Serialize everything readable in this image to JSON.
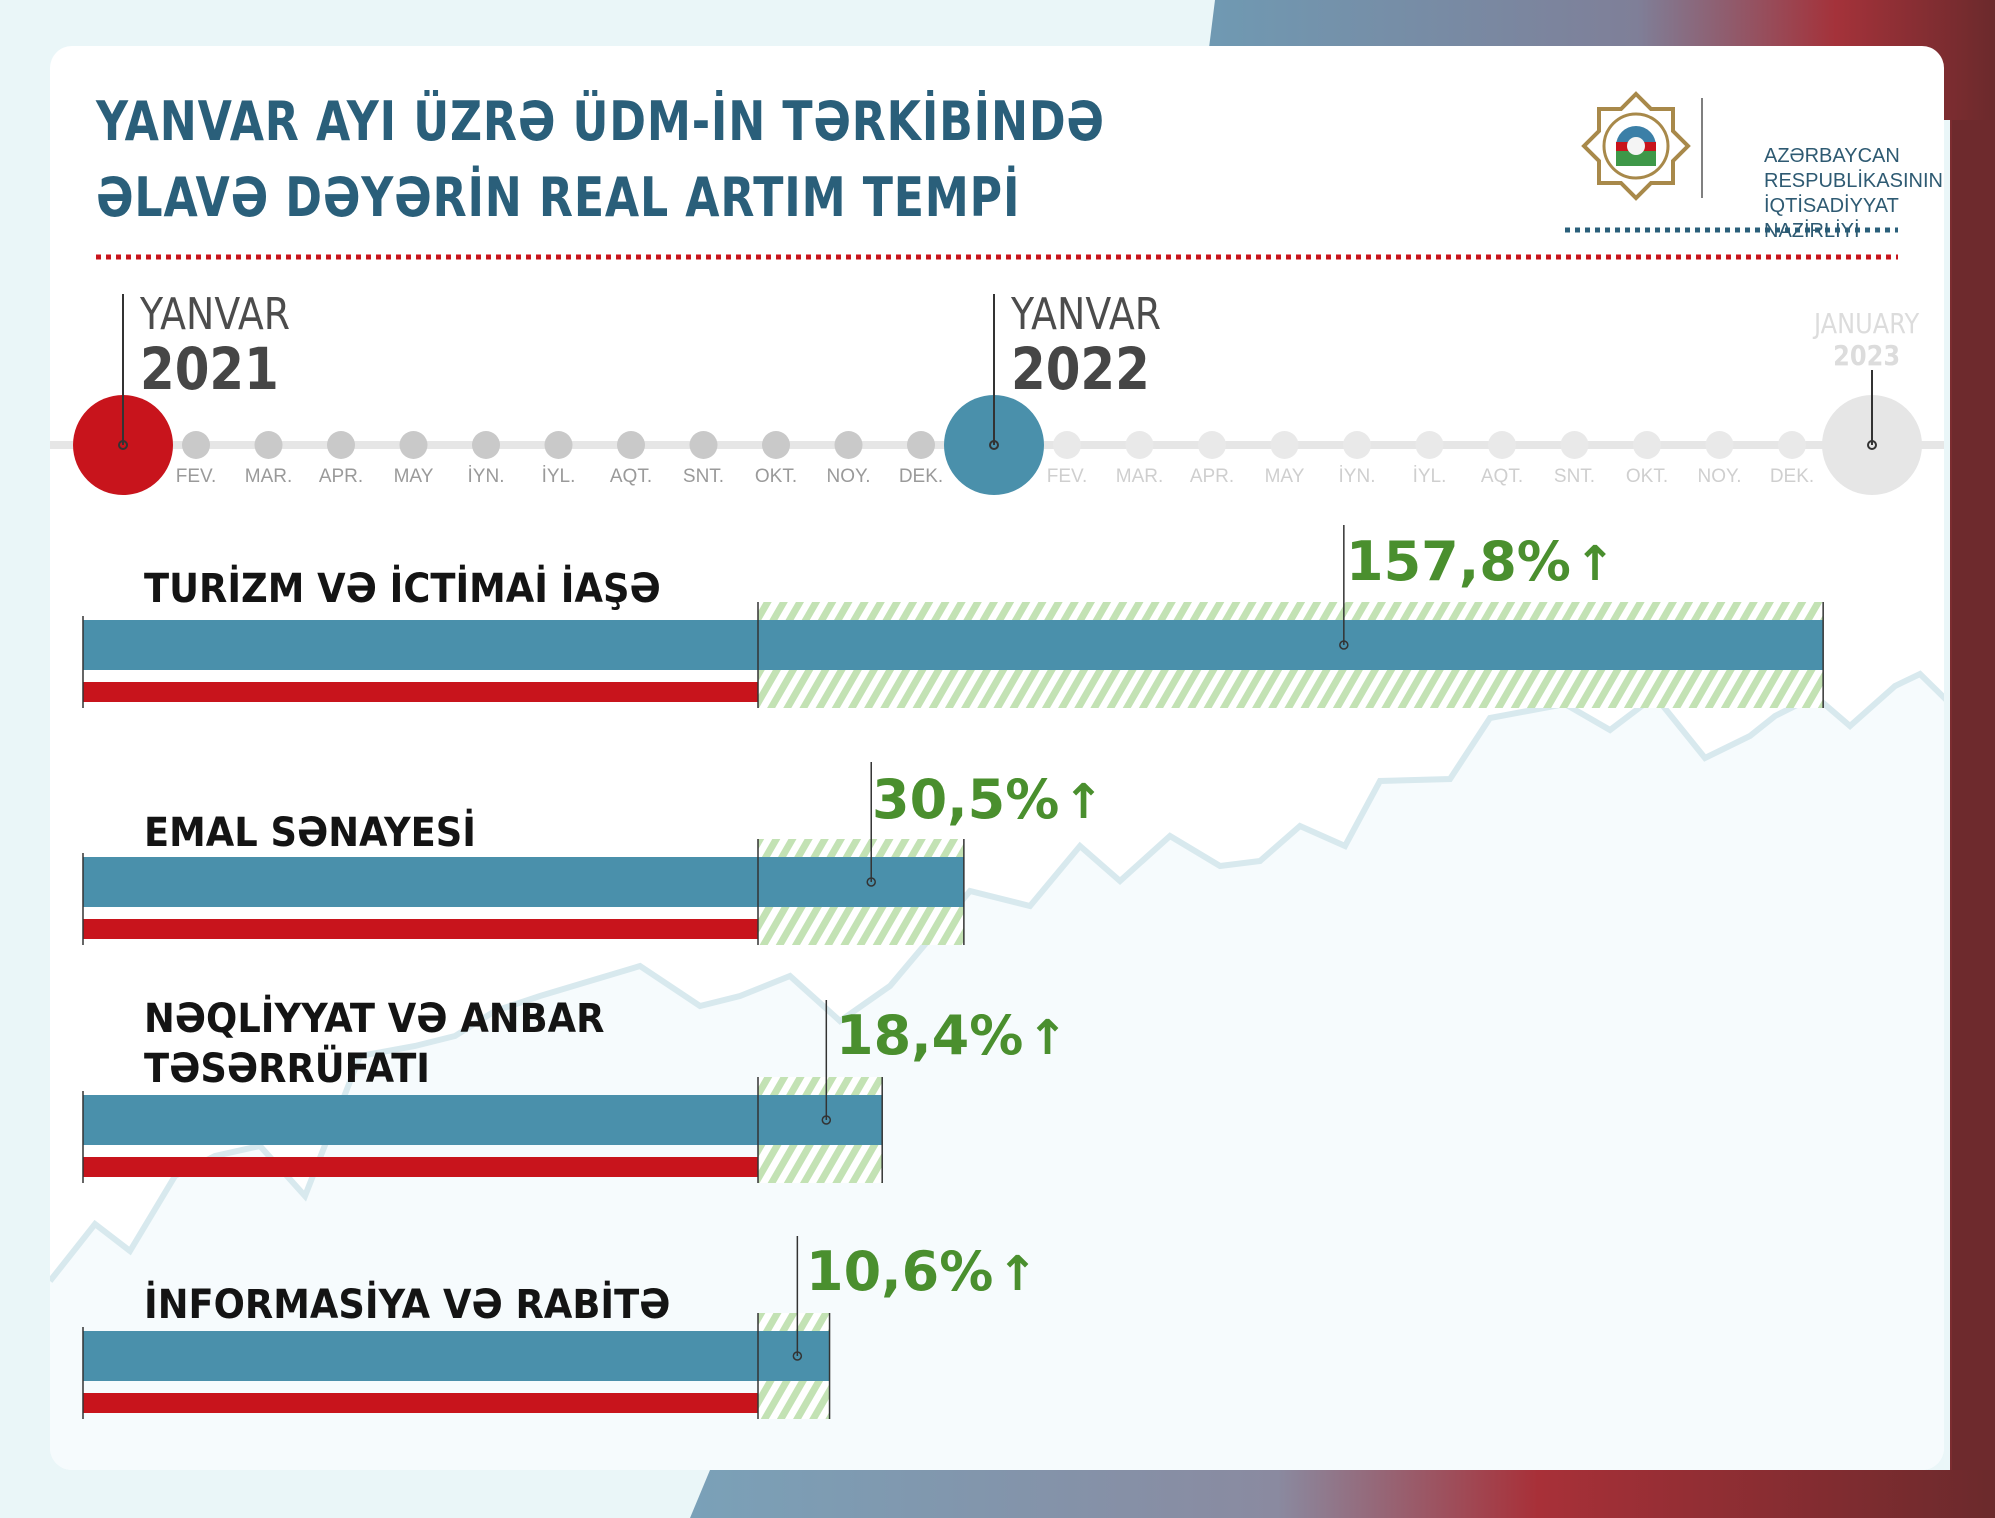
{
  "title_line1": "YANVAR AYI ÜZRƏ ÜDM-İN TƏRKİBİNDƏ",
  "title_line2": "ƏLAVƏ DƏYƏRİN REAL ARTIM TEMPİ",
  "ministry": [
    "AZƏRBAYCAN",
    "RESPUBLİKASININ",
    "İQTİSADİYYAT",
    "NAZİRLİYİ"
  ],
  "timeline": {
    "start": {
      "month": "YANVAR",
      "year": "2021"
    },
    "mid": {
      "month": "YANVAR",
      "year": "2022"
    },
    "end": {
      "month": "JANUARY",
      "year": "2023"
    },
    "months": [
      "FEV.",
      "MAR.",
      "APR.",
      "MAY",
      "İYN.",
      "İYL.",
      "AQT.",
      "SNT.",
      "OKT.",
      "NOY.",
      "DEK."
    ]
  },
  "colors": {
    "base_bar": "#4a90ab",
    "red_bar": "#c8141c",
    "growth_hatch": "#bfe0b0",
    "value": "#4a8f2e",
    "title": "#2a5f7a"
  },
  "arrow_icon": "↑",
  "chart_data": {
    "type": "bar",
    "orientation": "horizontal",
    "categories": [
      [
        "TURİZM VƏ İCTİMAİ İAŞƏ"
      ],
      [
        "EMAL SƏNAYESİ"
      ],
      [
        "NƏQLİYYAT VƏ ANBAR",
        "TƏSƏRRÜFATI"
      ],
      [
        "İNFORMASİYA VƏ RABİTƏ"
      ]
    ],
    "values": [
      157.8,
      30.5,
      18.4,
      10.6
    ],
    "labels": [
      "157,8%",
      "30,5%",
      "18,4%",
      "10,6%"
    ],
    "series": [
      {
        "values": [
          100,
          100,
          100,
          100
        ]
      },
      {
        "values": [
          257.8,
          130.5,
          118.4,
          110.6
        ]
      }
    ]
  }
}
